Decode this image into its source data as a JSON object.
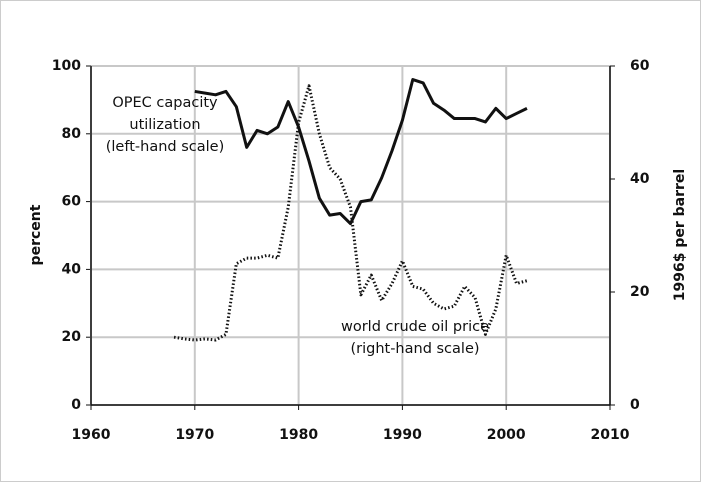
{
  "chart_data": {
    "type": "line",
    "xlim": [
      1960,
      2010
    ],
    "xticks": [
      1960,
      1970,
      1980,
      1990,
      2000,
      2010
    ],
    "ylim": [
      0,
      100
    ],
    "yticks": [
      0,
      20,
      40,
      60,
      80,
      100
    ],
    "y2lim": [
      0,
      60
    ],
    "y2ticks": [
      0,
      20,
      40,
      60
    ],
    "ylabel": "percent",
    "y2label": "1996$ per barrel",
    "grid": true,
    "series": [
      {
        "color": "#111111",
        "style": "solid",
        "x": [
          1970,
          1971,
          1972,
          1973,
          1974,
          1975,
          1976,
          1977,
          1978,
          1979,
          1980,
          1981,
          1982,
          1983,
          1984,
          1985,
          1986,
          1987,
          1988,
          1989,
          1990,
          1991,
          1992,
          1993,
          1994,
          1995,
          1996,
          1997,
          1998,
          1999,
          2000,
          2001,
          2002
        ],
        "values": [
          92.5,
          92,
          91.5,
          92.5,
          88,
          76,
          81,
          80,
          82,
          89.5,
          82,
          72,
          61,
          56,
          56.5,
          53.5,
          60,
          60.5,
          67,
          75,
          84,
          96,
          95,
          89,
          87,
          84.5,
          84.5,
          84.5,
          83.5,
          87.5,
          84.5,
          86,
          87.5
        ]
      },
      {
        "color": "#111111",
        "style": "dotted",
        "axis": "y2",
        "x": [
          1968,
          1969,
          1970,
          1971,
          1972,
          1973,
          1974,
          1975,
          1976,
          1977,
          1978,
          1979,
          1980,
          1981,
          1982,
          1983,
          1984,
          1985,
          1986,
          1987,
          1988,
          1989,
          1990,
          1991,
          1992,
          1993,
          1994,
          1995,
          1996,
          1997,
          1998,
          1999,
          2000,
          2001,
          2002
        ],
        "values": [
          12,
          11.7,
          11.5,
          11.7,
          11.5,
          12.5,
          25,
          26,
          26,
          26.5,
          26,
          35,
          50,
          56.5,
          48,
          42,
          40,
          35,
          19.5,
          23,
          18.5,
          21.5,
          25.5,
          21,
          20.5,
          18,
          17,
          17.5,
          21,
          19,
          12.5,
          17,
          26.5,
          21.5,
          22
        ]
      }
    ],
    "annotations": [
      {
        "lines": [
          "OPEC capacity",
          "utilization",
          "(left-hand scale)"
        ]
      },
      {
        "lines": [
          "world crude oil price",
          "(right-hand scale)"
        ]
      }
    ]
  }
}
